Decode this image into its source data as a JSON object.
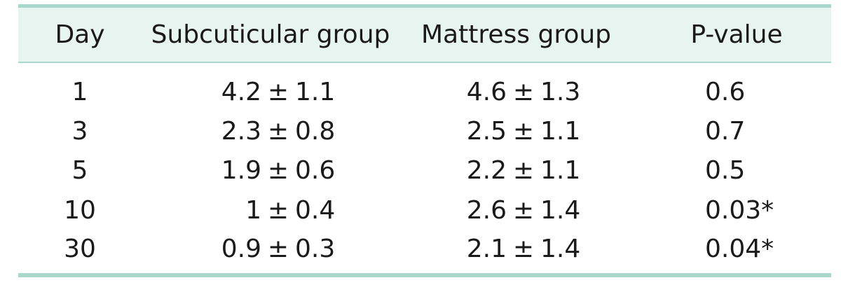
{
  "table": {
    "headers": [
      "Day",
      "Subcuticular group",
      "Mattress group",
      "P-value"
    ],
    "rows": [
      {
        "day": "1",
        "sub_mean": "4.2",
        "sub_sd": "1.1",
        "mat_mean": "4.6",
        "mat_sd": "1.3",
        "p": "0.6"
      },
      {
        "day": "3",
        "sub_mean": "2.3",
        "sub_sd": "0.8",
        "mat_mean": "2.5",
        "mat_sd": "1.1",
        "p": "0.7"
      },
      {
        "day": "5",
        "sub_mean": "1.9",
        "sub_sd": "0.6",
        "mat_mean": "2.2",
        "mat_sd": "1.1",
        "p": "0.5"
      },
      {
        "day": "10",
        "sub_mean": "1",
        "sub_sd": "0.4",
        "mat_mean": "2.6",
        "mat_sd": "1.4",
        "p": "0.03*"
      },
      {
        "day": "30",
        "sub_mean": "0.9",
        "sub_sd": "0.3",
        "mat_mean": "2.1",
        "mat_sd": "1.4",
        "p": "0.04*"
      }
    ],
    "pm_symbol": "±"
  },
  "colors": {
    "rule": "#a8d8cc",
    "header_band": "#e8f4ef",
    "text": "#1a1a1a"
  }
}
